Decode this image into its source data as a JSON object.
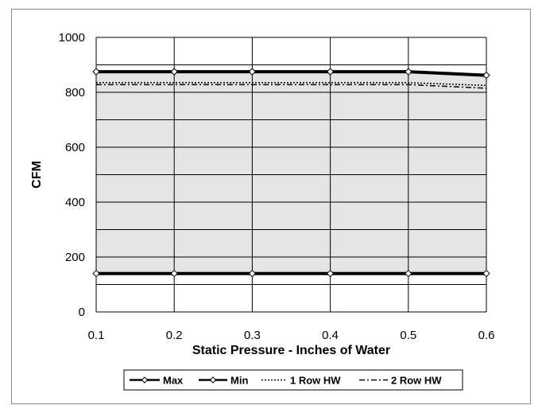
{
  "chart_data": {
    "type": "line",
    "title": "",
    "xlabel": "Static Pressure - Inches of Water",
    "ylabel": "CFM",
    "xlim": [
      0.1,
      0.6
    ],
    "ylim": [
      0,
      1000
    ],
    "x_ticks": [
      "0.1",
      "0.2",
      "0.3",
      "0.4",
      "0.5",
      "0.6"
    ],
    "y_ticks": [
      "0",
      "200",
      "400",
      "600",
      "800",
      "1000"
    ],
    "x": [
      0.1,
      0.2,
      0.3,
      0.4,
      0.5,
      0.6
    ],
    "grid": true,
    "legend_position": "bottom",
    "colors": {
      "shade": "#e4e4e4",
      "line": "#000000",
      "grid": "#000000"
    },
    "series": [
      {
        "name": "Max",
        "style": "solid-diamond",
        "values": [
          875,
          875,
          875,
          875,
          875,
          862
        ]
      },
      {
        "name": "Min",
        "style": "solid-diamond",
        "values": [
          140,
          140,
          140,
          140,
          140,
          140
        ]
      },
      {
        "name": "1 Row HW",
        "style": "dotted",
        "values": [
          835,
          835,
          835,
          835,
          835,
          825
        ]
      },
      {
        "name": "2 Row HW",
        "style": "dash-dot",
        "values": [
          828,
          828,
          828,
          828,
          828,
          815
        ]
      }
    ]
  }
}
